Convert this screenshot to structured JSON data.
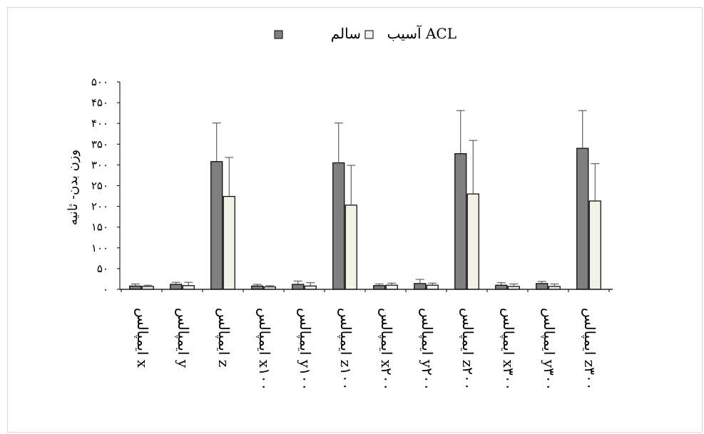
{
  "chart_data": {
    "type": "bar",
    "title": "",
    "xlabel": "",
    "ylabel": "وزن بدن- ثانیه",
    "ylim": [
      0,
      500
    ],
    "yticks": [
      0,
      50,
      100,
      150,
      200,
      250,
      300,
      350,
      400,
      450,
      500
    ],
    "ytick_labels": [
      "۰",
      "۵۰",
      "۱۰۰",
      "۱۵۰",
      "۲۰۰",
      "۲۵۰",
      "۳۰۰",
      "۳۵۰",
      "۴۰۰",
      "۴۵۰",
      "۵۰۰"
    ],
    "legend_position": "top",
    "grid": false,
    "categories": [
      "ایمپالس x",
      "ایمپالس y",
      "ایمپالس z",
      "ایمپالس x۱۰۰",
      "ایمپالس y۱۰۰",
      "ایمپالس z۱۰۰",
      "ایمپالس x۲۰۰",
      "ایمپالس y۲۰۰",
      "ایمپالس z۲۰۰",
      "ایمپالس x۳۰۰",
      "ایمپالس y۳۰۰",
      "ایمپالس z۳۰۰"
    ],
    "series": [
      {
        "name": "سالم",
        "color": "#7f7f7f",
        "values": [
          8,
          12,
          308,
          8,
          12,
          305,
          9,
          14,
          327,
          10,
          14,
          340
        ],
        "errors": [
          5,
          5,
          93,
          4,
          8,
          96,
          4,
          10,
          104,
          6,
          5,
          91
        ]
      },
      {
        "name": "آسیب ACL",
        "color": "#f2f2e6",
        "values": [
          7,
          9,
          224,
          6,
          8,
          203,
          10,
          10,
          230,
          7,
          7,
          213
        ],
        "errors": [
          3,
          8,
          94,
          3,
          8,
          96,
          5,
          5,
          129,
          6,
          6,
          90
        ]
      }
    ]
  }
}
